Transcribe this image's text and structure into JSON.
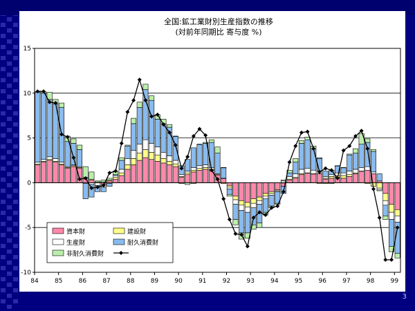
{
  "page_number": "3",
  "chart_data": {
    "type": "bar",
    "title": "全国:鉱工業財別生産指数の推移",
    "subtitle": "(対前年同期比 寄与度 %)",
    "xlabel": "",
    "ylabel": "",
    "ylim": [
      -10,
      15
    ],
    "y_ticks": [
      -10,
      -5,
      0,
      5,
      10,
      15
    ],
    "x_tick_labels": [
      "84",
      "85",
      "86",
      "87",
      "88",
      "89",
      "90",
      "91",
      "92",
      "93",
      "94",
      "95",
      "96",
      "97",
      "98",
      "99"
    ],
    "grid": "horizontal",
    "legend_position": "bottom-left",
    "colors": {
      "資本財": "#ff88aa",
      "建設財": "#ffff88",
      "生産財": "#ffffff",
      "耐久消費財": "#88bbee",
      "非耐久消費財": "#bbeeaa",
      "total": "#000000"
    },
    "categories": [
      "84Q1",
      "84Q2",
      "84Q3",
      "84Q4",
      "85Q1",
      "85Q2",
      "85Q3",
      "85Q4",
      "86Q1",
      "86Q2",
      "86Q3",
      "86Q4",
      "87Q1",
      "87Q2",
      "87Q3",
      "87Q4",
      "88Q1",
      "88Q2",
      "88Q3",
      "88Q4",
      "89Q1",
      "89Q2",
      "89Q3",
      "89Q4",
      "90Q1",
      "90Q2",
      "90Q3",
      "90Q4",
      "91Q1",
      "91Q2",
      "91Q3",
      "91Q4",
      "92Q1",
      "92Q2",
      "92Q3",
      "92Q4",
      "93Q1",
      "93Q2",
      "93Q3",
      "93Q4",
      "94Q1",
      "94Q2",
      "94Q3",
      "94Q4",
      "95Q1",
      "95Q2",
      "95Q3",
      "95Q4",
      "96Q1",
      "96Q2",
      "96Q3",
      "96Q4",
      "97Q1",
      "97Q2",
      "97Q3",
      "97Q4",
      "98Q1",
      "98Q2",
      "98Q3",
      "98Q4",
      "99Q1"
    ],
    "series": [
      {
        "name": "資本財",
        "values": [
          2.0,
          2.3,
          2.5,
          2.3,
          2.0,
          1.6,
          1.8,
          1.6,
          0.5,
          0.3,
          0.0,
          -0.2,
          0.2,
          0.4,
          0.8,
          1.5,
          2.0,
          2.5,
          2.8,
          2.6,
          2.4,
          2.2,
          2.0,
          1.8,
          0.6,
          0.9,
          1.2,
          1.4,
          1.5,
          1.4,
          0.9,
          0.5,
          -0.3,
          -1.5,
          -2.0,
          -2.2,
          -1.8,
          -1.6,
          -1.2,
          -1.0,
          -0.8,
          -0.4,
          0.3,
          0.5,
          0.9,
          1.1,
          1.0,
          1.0,
          0.4,
          0.5,
          0.6,
          0.5,
          0.7,
          1.0,
          1.3,
          1.4,
          1.0,
          0.2,
          -1.2,
          -2.4,
          -3.0
        ]
      },
      {
        "name": "建設財",
        "values": [
          0.1,
          0.1,
          0.1,
          0.1,
          0.1,
          0.1,
          0.1,
          0.1,
          0.1,
          0.1,
          0.1,
          0.1,
          0.1,
          0.2,
          0.3,
          0.5,
          0.7,
          0.8,
          0.9,
          0.8,
          0.7,
          0.5,
          0.4,
          0.3,
          0.1,
          0.2,
          0.2,
          0.2,
          0.2,
          0.1,
          0.0,
          -0.1,
          -0.2,
          -0.4,
          -0.5,
          -0.5,
          -0.5,
          -0.4,
          -0.3,
          -0.2,
          -0.1,
          0.0,
          0.1,
          0.1,
          0.1,
          0.0,
          0.0,
          -0.1,
          0.1,
          0.2,
          0.2,
          0.3,
          0.2,
          0.1,
          0.0,
          -0.1,
          -0.4,
          -0.6,
          -0.8,
          -0.9,
          -0.7
        ]
      },
      {
        "name": "生産財",
        "values": [
          0.2,
          0.2,
          0.3,
          0.3,
          0.2,
          0.1,
          0.1,
          0.1,
          -0.1,
          -0.2,
          -0.3,
          -0.3,
          -0.1,
          0.2,
          0.4,
          0.7,
          0.9,
          1.0,
          1.1,
          1.0,
          0.9,
          0.7,
          0.6,
          0.4,
          0.2,
          0.2,
          0.3,
          0.3,
          0.3,
          0.2,
          0.1,
          0.0,
          -0.2,
          -0.5,
          -0.6,
          -0.6,
          -0.5,
          -0.4,
          -0.3,
          -0.2,
          -0.1,
          0.2,
          0.3,
          0.4,
          0.5,
          0.5,
          0.4,
          0.3,
          0.2,
          0.2,
          0.3,
          0.3,
          0.4,
          0.4,
          0.4,
          0.4,
          0.2,
          -0.2,
          -0.5,
          -0.8,
          -0.7
        ]
      },
      {
        "name": "耐久消費財",
        "values": [
          7.8,
          7.4,
          6.4,
          6.1,
          6.1,
          2.8,
          2.4,
          1.9,
          -1.7,
          -1.4,
          -0.7,
          -0.5,
          -0.3,
          0.1,
          1.0,
          1.4,
          3.0,
          4.1,
          5.6,
          4.8,
          3.1,
          3.2,
          3.2,
          2.7,
          1.0,
          1.3,
          2.2,
          2.4,
          2.4,
          2.8,
          2.3,
          1.2,
          -0.6,
          -1.7,
          -2.5,
          -2.3,
          -1.9,
          -2.1,
          -1.5,
          -1.2,
          -1.3,
          -0.8,
          0.4,
          1.3,
          2.9,
          3.2,
          2.4,
          1.4,
          0.6,
          0.5,
          0.8,
          0.6,
          1.8,
          1.8,
          2.6,
          2.7,
          2.3,
          0.8,
          -1.2,
          -3.0,
          -3.5
        ]
      },
      {
        "name": "非耐久消費財",
        "values": [
          0.1,
          0.2,
          0.8,
          0.5,
          0.5,
          0.6,
          0.5,
          0.5,
          1.2,
          0.8,
          0.1,
          0.2,
          0.2,
          0.4,
          0.3,
          0.1,
          0.6,
          0.6,
          0.6,
          0.5,
          0.5,
          0.5,
          0.3,
          0.0,
          -0.1,
          -0.2,
          -0.1,
          0.0,
          0.1,
          0.3,
          0.7,
          0.0,
          -0.2,
          -0.6,
          -0.7,
          -0.6,
          -0.5,
          -0.5,
          -0.3,
          -0.2,
          -0.1,
          0.1,
          0.3,
          0.4,
          0.3,
          0.3,
          0.3,
          0.1,
          -0.1,
          -0.1,
          0.0,
          0.0,
          0.1,
          0.5,
          1.2,
          0.4,
          0.2,
          -0.1,
          -0.4,
          -0.6,
          -0.5
        ]
      },
      {
        "name": "total",
        "values": [
          10.2,
          10.2,
          9.0,
          8.9,
          5.4,
          5.1,
          2.8,
          0.4,
          0.5,
          -0.6,
          -0.5,
          -0.3,
          1.1,
          1.3,
          4.4,
          7.9,
          9.2,
          11.5,
          9.2,
          7.4,
          7.6,
          6.5,
          5.6,
          4.2,
          1.6,
          2.9,
          5.2,
          6.0,
          5.3,
          1.4,
          0.4,
          -1.8,
          -4.1,
          -5.7,
          -5.8,
          -7.1,
          -3.9,
          -3.3,
          -3.6,
          -2.8,
          -2.6,
          -1.0,
          2.3,
          4.1,
          5.6,
          5.7,
          3.8,
          1.2,
          1.6,
          1.4,
          0.5,
          3.6,
          4.1,
          5.2,
          5.8,
          3.8,
          -0.7,
          -3.9,
          -8.6,
          -8.6,
          -5.0
        ]
      }
    ]
  }
}
